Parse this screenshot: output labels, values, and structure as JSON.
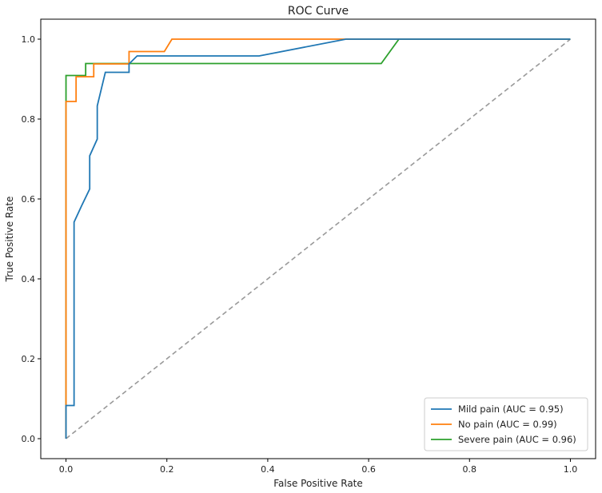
{
  "chart_data": {
    "type": "line",
    "title": "ROC Curve",
    "xlabel": "False Positive Rate",
    "ylabel": "True Positive Rate",
    "xlim": [
      -0.05,
      1.05
    ],
    "ylim": [
      -0.05,
      1.05
    ],
    "xticks": [
      0.0,
      0.2,
      0.4,
      0.6,
      0.8,
      1.0
    ],
    "yticks": [
      0.0,
      0.2,
      0.4,
      0.6,
      0.8,
      1.0
    ],
    "xtick_labels": [
      "0.0",
      "0.2",
      "0.4",
      "0.6",
      "0.8",
      "1.0"
    ],
    "ytick_labels": [
      "0.0",
      "0.2",
      "0.4",
      "0.6",
      "0.8",
      "1.0"
    ],
    "grid": false,
    "legend_position": "bottom-right",
    "series": [
      {
        "name": "Mild pain (AUC = 0.95)",
        "color": "#1f77b4",
        "x": [
          0.0,
          0.0,
          0.016,
          0.016,
          0.031,
          0.031,
          0.047,
          0.047,
          0.047,
          0.047,
          0.062,
          0.062,
          0.062,
          0.078,
          0.125,
          0.125,
          0.141,
          0.141,
          0.383,
          0.555,
          1.0
        ],
        "y": [
          0.0,
          0.083,
          0.083,
          0.542,
          0.583,
          0.583,
          0.625,
          0.667,
          0.667,
          0.708,
          0.75,
          0.833,
          0.833,
          0.917,
          0.917,
          0.938,
          0.958,
          0.958,
          0.958,
          1.0,
          1.0
        ]
      },
      {
        "name": "No pain (AUC = 0.99)",
        "color": "#ff7f0e",
        "x": [
          0.0,
          0.0,
          0.02,
          0.02,
          0.055,
          0.055,
          0.125,
          0.125,
          0.195,
          0.21,
          0.66,
          1.0
        ],
        "y": [
          0.0,
          0.844,
          0.844,
          0.906,
          0.906,
          0.938,
          0.938,
          0.969,
          0.969,
          1.0,
          1.0,
          1.0
        ]
      },
      {
        "name": "Severe pain (AUC = 0.96)",
        "color": "#2ca02c",
        "x": [
          0.0,
          0.0,
          0.039,
          0.039,
          0.625,
          0.66,
          1.0
        ],
        "y": [
          0.0,
          0.909,
          0.909,
          0.939,
          0.939,
          1.0,
          1.0
        ]
      }
    ],
    "reference_line": {
      "x": [
        0.0,
        1.0
      ],
      "y": [
        0.0,
        1.0
      ],
      "color": "#999999",
      "style": "dashed"
    }
  }
}
